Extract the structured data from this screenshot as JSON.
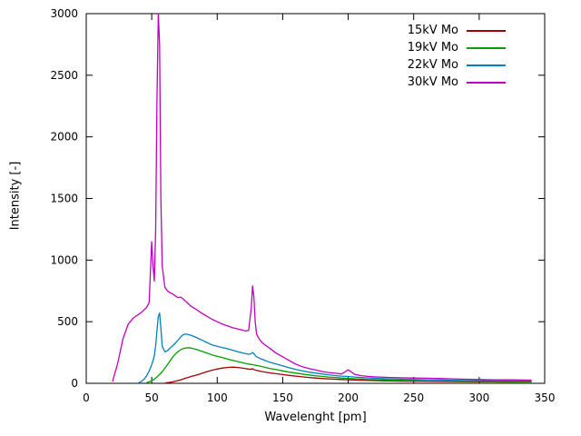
{
  "chart_data": {
    "type": "line",
    "title": "",
    "xlabel": "Wavelenght [pm]",
    "ylabel": "Intensity [-]",
    "xlim": [
      0,
      350
    ],
    "ylim": [
      0,
      3000
    ],
    "xticks": [
      0,
      50,
      100,
      150,
      200,
      250,
      300,
      350
    ],
    "yticks": [
      0,
      500,
      1000,
      1500,
      2000,
      2500,
      3000
    ],
    "grid": false,
    "legend_position": "top-right",
    "x": [
      20,
      24,
      28,
      32,
      36,
      40,
      42,
      44,
      46,
      48,
      50,
      51,
      52,
      53,
      54,
      55,
      56,
      57,
      58,
      60,
      62,
      64,
      66,
      68,
      70,
      72,
      74,
      76,
      78,
      80,
      84,
      88,
      92,
      96,
      100,
      104,
      108,
      112,
      116,
      120,
      122,
      124,
      126,
      127,
      128,
      129,
      130,
      132,
      134,
      136,
      140,
      145,
      150,
      155,
      160,
      165,
      170,
      175,
      180,
      185,
      190,
      195,
      200,
      205,
      210,
      215,
      220,
      230,
      240,
      250,
      260,
      270,
      280,
      290,
      300,
      310,
      320,
      330,
      340
    ],
    "series": [
      {
        "name": "15kV Mo",
        "color": "#a00000",
        "values": [
          null,
          null,
          null,
          null,
          null,
          null,
          null,
          null,
          null,
          null,
          null,
          null,
          null,
          null,
          null,
          null,
          null,
          null,
          null,
          2,
          5,
          8,
          12,
          16,
          22,
          28,
          35,
          42,
          48,
          55,
          66,
          80,
          94,
          106,
          116,
          124,
          129,
          131,
          128,
          122,
          119,
          116,
          115,
          118,
          112,
          108,
          105,
          100,
          96,
          92,
          85,
          78,
          71,
          64,
          58,
          52,
          47,
          43,
          39,
          36,
          33,
          31,
          29,
          27,
          25,
          23,
          22,
          20,
          18,
          17,
          16,
          15,
          14,
          13,
          12,
          12,
          11,
          11,
          11
        ]
      },
      {
        "name": "19kV Mo",
        "color": "#00a000",
        "values": [
          null,
          null,
          null,
          null,
          null,
          null,
          null,
          null,
          6,
          12,
          22,
          27,
          33,
          42,
          52,
          62,
          72,
          82,
          95,
          122,
          152,
          182,
          212,
          237,
          257,
          272,
          282,
          287,
          289,
          286,
          276,
          261,
          246,
          231,
          220,
          209,
          196,
          186,
          176,
          166,
          161,
          156,
          153,
          151,
          149,
          147,
          145,
          141,
          136,
          131,
          121,
          111,
          101,
          91,
          83,
          75,
          68,
          61,
          56,
          51,
          47,
          43,
          40,
          37,
          35,
          32,
          30,
          27,
          24,
          22,
          20,
          19,
          18,
          17,
          16,
          15,
          15,
          14,
          14
        ]
      },
      {
        "name": "22kV Mo",
        "color": "#0080c0",
        "values": [
          null,
          null,
          null,
          null,
          null,
          5,
          15,
          30,
          60,
          100,
          150,
          185,
          225,
          305,
          430,
          545,
          570,
          450,
          300,
          255,
          265,
          285,
          305,
          325,
          350,
          375,
          395,
          400,
          395,
          390,
          372,
          352,
          332,
          312,
          300,
          290,
          280,
          268,
          255,
          245,
          240,
          236,
          242,
          250,
          240,
          226,
          215,
          205,
          196,
          188,
          172,
          156,
          142,
          126,
          112,
          101,
          91,
          83,
          76,
          69,
          63,
          58,
          55,
          51,
          47,
          44,
          41,
          37,
          34,
          31,
          29,
          27,
          25,
          23,
          22,
          21,
          20,
          19,
          19
        ]
      },
      {
        "name": "30kV Mo",
        "color": "#c000c0",
        "values": [
          15,
          160,
          360,
          480,
          530,
          560,
          575,
          595,
          615,
          655,
          1150,
          950,
          830,
          1250,
          2300,
          3000,
          2750,
          1500,
          950,
          780,
          750,
          735,
          725,
          710,
          695,
          700,
          685,
          665,
          645,
          625,
          600,
          570,
          545,
          520,
          500,
          480,
          465,
          450,
          440,
          430,
          425,
          430,
          610,
          790,
          700,
          500,
          400,
          360,
          335,
          315,
          285,
          245,
          215,
          185,
          155,
          135,
          120,
          108,
          96,
          88,
          82,
          76,
          110,
          72,
          62,
          56,
          52,
          48,
          45,
          43,
          41,
          39,
          36,
          33,
          31,
          29,
          28,
          27,
          26
        ]
      }
    ]
  }
}
